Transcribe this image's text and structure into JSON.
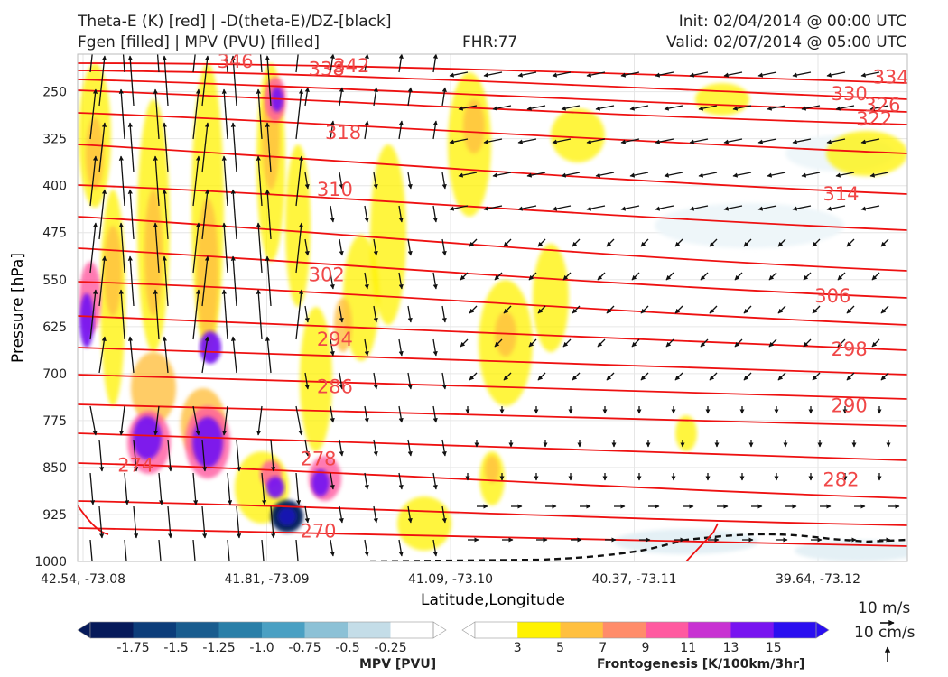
{
  "header": {
    "title_left_1": "Theta-E (K) [red] | -D(theta-E)/DZ-[black]",
    "title_left_2": "Fgen [filled] | MPV (PVU) [filled]",
    "fhr": "FHR:77",
    "init": "Init: 02/04/2014 @ 00:00 UTC",
    "valid": "Valid: 02/07/2014 @ 05:00 UTC"
  },
  "chart_data": {
    "type": "cross-section",
    "xlabel": "Latitude,Longitude",
    "ylabel": "Pressure [hPa]",
    "x_ticks": [
      "42.54, -73.08",
      "41.81, -73.09",
      "41.09, -73.10",
      "40.37, -73.11",
      "39.64, -73.12"
    ],
    "y_ticks": [
      250,
      325,
      400,
      475,
      550,
      625,
      700,
      775,
      850,
      925,
      1000
    ],
    "ylim": [
      1000,
      190
    ],
    "grid": true,
    "theta_e_labels": [
      {
        "value": 346,
        "x": 0.19,
        "p": 200
      },
      {
        "value": 338,
        "x": 0.3,
        "p": 212
      },
      {
        "value": 342,
        "x": 0.33,
        "p": 207
      },
      {
        "value": 334,
        "x": 0.98,
        "p": 225
      },
      {
        "value": 330,
        "x": 0.93,
        "p": 252
      },
      {
        "value": 326,
        "x": 0.97,
        "p": 270
      },
      {
        "value": 322,
        "x": 0.96,
        "p": 292
      },
      {
        "value": 318,
        "x": 0.32,
        "p": 314
      },
      {
        "value": 314,
        "x": 0.92,
        "p": 412
      },
      {
        "value": 310,
        "x": 0.31,
        "p": 405
      },
      {
        "value": 306,
        "x": 0.91,
        "p": 575
      },
      {
        "value": 302,
        "x": 0.3,
        "p": 541
      },
      {
        "value": 298,
        "x": 0.93,
        "p": 660
      },
      {
        "value": 294,
        "x": 0.31,
        "p": 644
      },
      {
        "value": 290,
        "x": 0.93,
        "p": 750
      },
      {
        "value": 286,
        "x": 0.31,
        "p": 720
      },
      {
        "value": 282,
        "x": 0.92,
        "p": 868
      },
      {
        "value": 278,
        "x": 0.29,
        "p": 835
      },
      {
        "value": 274,
        "x": 0.07,
        "p": 845
      },
      {
        "value": 270,
        "x": 0.29,
        "p": 950
      }
    ],
    "mpv_colorbar": {
      "label": "MPV [PVU]",
      "ticks": [
        "-1.75",
        "-1.5",
        "-1.25",
        "-1.0",
        "-0.75",
        "-0.5",
        "-0.25"
      ],
      "colors": [
        "#061a5a",
        "#0c3d7a",
        "#195c8e",
        "#2a7fa8",
        "#4aa0c3",
        "#8cc1d6",
        "#c4dde8",
        "#ffffff"
      ]
    },
    "fgen_colorbar": {
      "label": "Frontogenesis [K/100km/3hr]",
      "ticks": [
        "3",
        "5",
        "7",
        "9",
        "11",
        "13",
        "15"
      ],
      "colors": [
        "#ffffff",
        "#fff200",
        "#ffc040",
        "#ff8c6a",
        "#ff5aa0",
        "#c832d2",
        "#7814f0",
        "#2a0ff0"
      ]
    },
    "vector_reference": {
      "horizontal": "10 m/s",
      "vertical": "10 cm/s"
    }
  }
}
